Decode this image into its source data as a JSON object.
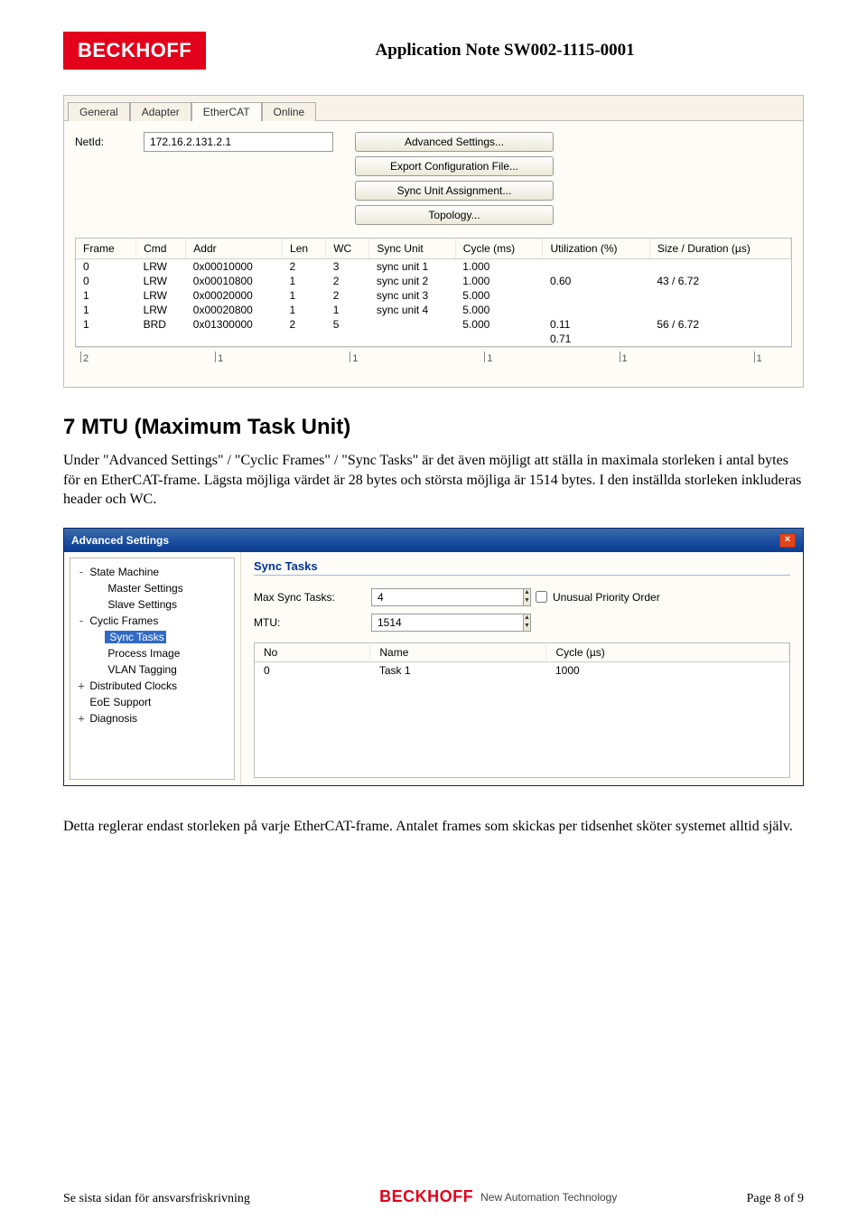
{
  "header": {
    "logo_text": "BECKHOFF",
    "doc_title": "Application Note SW002-1115-0001"
  },
  "ecat_panel": {
    "tabs": [
      "General",
      "Adapter",
      "EtherCAT",
      "Online"
    ],
    "active_tab_index": 2,
    "netid_label": "NetId:",
    "netid_value": "172.16.2.131.2.1",
    "buttons": [
      "Advanced Settings...",
      "Export Configuration File...",
      "Sync Unit Assignment...",
      "Topology..."
    ],
    "columns": [
      "Frame",
      "Cmd",
      "Addr",
      "Len",
      "WC",
      "Sync Unit",
      "Cycle (ms)",
      "Utilization (%)",
      "Size / Duration (µs)"
    ],
    "rows": [
      [
        "0",
        "LRW",
        "0x00010000",
        "2",
        "3",
        "sync unit 1",
        "1.000",
        "",
        ""
      ],
      [
        "0",
        "LRW",
        "0x00010800",
        "1",
        "2",
        "sync unit 2",
        "1.000",
        "0.60",
        "43 / 6.72"
      ],
      [
        "1",
        "LRW",
        "0x00020000",
        "1",
        "2",
        "sync unit 3",
        "5.000",
        "",
        ""
      ],
      [
        "1",
        "LRW",
        "0x00020800",
        "1",
        "1",
        "sync unit 4",
        "5.000",
        "",
        ""
      ],
      [
        "1",
        "BRD",
        "0x01300000",
        "2",
        "5",
        "",
        "5.000",
        "0.11",
        "56 / 6.72"
      ],
      [
        "",
        "",
        "",
        "",
        "",
        "",
        "",
        "0.71",
        ""
      ]
    ],
    "ruler": [
      "2",
      "1",
      "1",
      "1",
      "1",
      "1"
    ]
  },
  "section": {
    "heading": "7   MTU (Maximum Task Unit)",
    "para1": "Under \"Advanced Settings\" / \"Cyclic Frames\" / \"Sync Tasks\" är det även möjligt att ställa in maximala storleken i antal bytes för en EtherCAT-frame. Lägsta möjliga värdet är 28 bytes och största möjliga är 1514 bytes. I den inställda storleken inkluderas header och WC.",
    "para2": "Detta reglerar endast storleken på varje EtherCAT-frame. Antalet frames som skickas per tidsenhet sköter systemet alltid själv."
  },
  "dlg": {
    "title": "Advanced Settings",
    "tree": {
      "items": [
        {
          "level": 1,
          "expand": "-",
          "label": "State Machine"
        },
        {
          "level": 2,
          "expand": "",
          "label": "Master Settings"
        },
        {
          "level": 2,
          "expand": "",
          "label": "Slave Settings"
        },
        {
          "level": 1,
          "expand": "-",
          "label": "Cyclic Frames"
        },
        {
          "level": 2,
          "expand": "",
          "label": "Sync Tasks",
          "selected": true
        },
        {
          "level": 2,
          "expand": "",
          "label": "Process Image"
        },
        {
          "level": 2,
          "expand": "",
          "label": "VLAN Tagging"
        },
        {
          "level": 1,
          "expand": "+",
          "label": "Distributed Clocks"
        },
        {
          "level": 1,
          "expand": "",
          "label": "EoE Support"
        },
        {
          "level": 1,
          "expand": "+",
          "label": "Diagnosis"
        }
      ]
    },
    "pane_title": "Sync Tasks",
    "max_sync_label": "Max Sync Tasks:",
    "max_sync_value": "4",
    "mtu_label": "MTU:",
    "mtu_value": "1514",
    "checkbox_label": "Unusual Priority Order",
    "tasks_cols": [
      "No",
      "Name",
      "Cycle (µs)"
    ],
    "tasks_rows": [
      [
        "0",
        "Task 1",
        "1000"
      ]
    ]
  },
  "footer": {
    "left": "Se sista sidan för ansvarsfriskrivning",
    "logo_red": "BECKHOFF",
    "logo_tag": "New Automation Technology",
    "page": "Page 8 of 9"
  }
}
